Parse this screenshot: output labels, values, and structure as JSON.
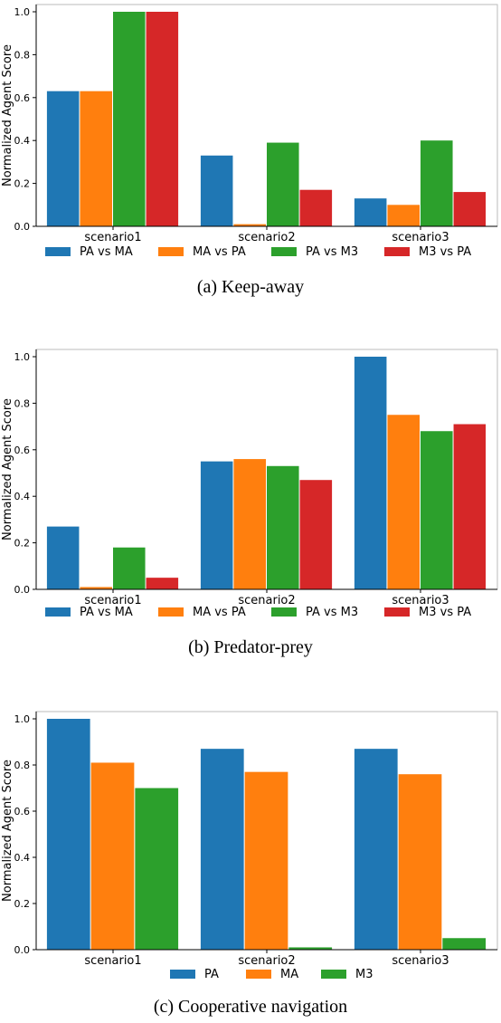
{
  "chart_data": [
    {
      "type": "bar",
      "caption": "(a)  Keep-away",
      "ylabel": "Normalized Agent Score",
      "ylim": [
        0,
        1.0
      ],
      "yticks": [
        "0.0",
        "0.2",
        "0.4",
        "0.6",
        "0.8",
        "1.0"
      ],
      "categories": [
        "scenario1",
        "scenario2",
        "scenario3"
      ],
      "legend": "bottom",
      "series": [
        {
          "name": "PA vs MA",
          "color": "#1f77b4",
          "values": [
            0.63,
            0.33,
            0.13
          ]
        },
        {
          "name": "MA vs PA",
          "color": "#ff7f0e",
          "values": [
            0.63,
            0.01,
            0.1
          ]
        },
        {
          "name": "PA vs M3",
          "color": "#2ca02c",
          "values": [
            1.0,
            0.39,
            0.4
          ]
        },
        {
          "name": "M3 vs PA",
          "color": "#d62728",
          "values": [
            1.0,
            0.17,
            0.16
          ]
        }
      ]
    },
    {
      "type": "bar",
      "caption": "(b)  Predator-prey",
      "ylabel": "Normalized Agent Score",
      "ylim": [
        0,
        1.0
      ],
      "yticks": [
        "0.0",
        "0.2",
        "0.4",
        "0.6",
        "0.8",
        "1.0"
      ],
      "categories": [
        "scenario1",
        "scenario2",
        "scenario3"
      ],
      "legend": "bottom",
      "series": [
        {
          "name": "PA vs MA",
          "color": "#1f77b4",
          "values": [
            0.27,
            0.55,
            1.0
          ]
        },
        {
          "name": "MA vs PA",
          "color": "#ff7f0e",
          "values": [
            0.01,
            0.56,
            0.75
          ]
        },
        {
          "name": "PA vs M3",
          "color": "#2ca02c",
          "values": [
            0.18,
            0.53,
            0.68
          ]
        },
        {
          "name": "M3 vs PA",
          "color": "#d62728",
          "values": [
            0.05,
            0.47,
            0.71
          ]
        }
      ]
    },
    {
      "type": "bar",
      "caption": "(c)  Cooperative navigation",
      "ylabel": "Normalized Agent Score",
      "ylim": [
        0,
        1.0
      ],
      "yticks": [
        "0.0",
        "0.2",
        "0.4",
        "0.6",
        "0.8",
        "1.0"
      ],
      "categories": [
        "scenario1",
        "scenario2",
        "scenario3"
      ],
      "legend": "bottom",
      "series": [
        {
          "name": "PA",
          "color": "#1f77b4",
          "values": [
            1.0,
            0.87,
            0.87
          ]
        },
        {
          "name": "MA",
          "color": "#ff7f0e",
          "values": [
            0.81,
            0.77,
            0.76
          ]
        },
        {
          "name": "M3",
          "color": "#2ca02c",
          "values": [
            0.7,
            0.01,
            0.05
          ]
        }
      ]
    }
  ]
}
